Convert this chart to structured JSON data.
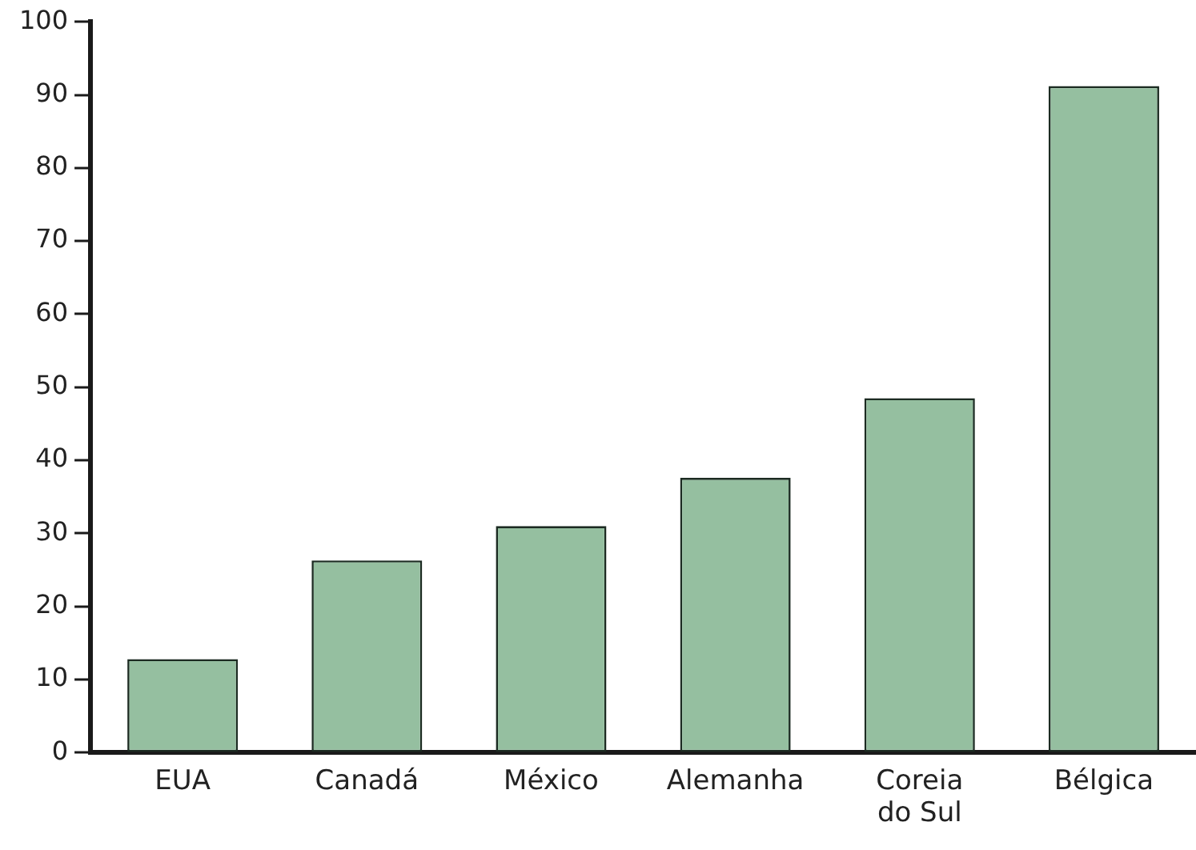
{
  "chart_data": {
    "type": "bar",
    "categories": [
      "EUA",
      "Canadá",
      "México",
      "Alemanha",
      "Coreia do Sul",
      "Bélgica"
    ],
    "values": [
      12.8,
      26.3,
      31,
      37.6,
      48.5,
      91.2
    ],
    "color": "#95bfa0",
    "ylim": [
      0,
      100
    ],
    "yticks": [
      0,
      10,
      20,
      30,
      40,
      50,
      60,
      70,
      80,
      90,
      100
    ],
    "grid": false,
    "legend": false
  }
}
